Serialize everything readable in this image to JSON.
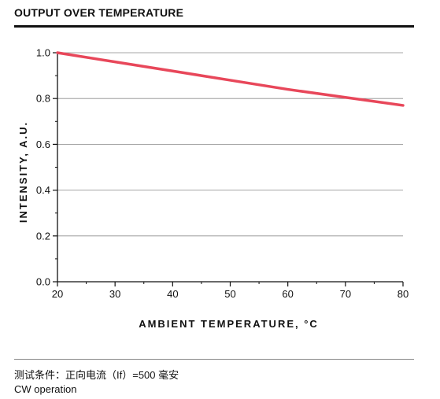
{
  "header": {
    "title": "OUTPUT OVER TEMPERATURE"
  },
  "footer": {
    "condition": "测试条件：正向电流（If）=500 毫安",
    "operation": "CW operation"
  },
  "chart_data": {
    "type": "line",
    "title": "OUTPUT OVER TEMPERATURE",
    "xlabel": "AMBIENT TEMPERATURE, °C",
    "ylabel": "INTENSITY, A.U.",
    "xlim": [
      20,
      80
    ],
    "ylim": [
      0.0,
      1.0
    ],
    "xticks": [
      20,
      30,
      40,
      50,
      60,
      70,
      80
    ],
    "xtick_labels": [
      "20",
      "30",
      "40",
      "50",
      "60",
      "70",
      "80"
    ],
    "yticks": [
      0.0,
      0.2,
      0.4,
      0.6,
      0.8,
      1.0
    ],
    "ytick_labels": [
      "0.0",
      "0.2",
      "0.4",
      "0.6",
      "0.8",
      "1.0"
    ],
    "grid": "horizontal",
    "series": [
      {
        "color": "#e8475a",
        "x": [
          20,
          30,
          40,
          50,
          60,
          70,
          80
        ],
        "y": [
          1.0,
          0.96,
          0.92,
          0.88,
          0.84,
          0.805,
          0.77
        ]
      }
    ]
  }
}
